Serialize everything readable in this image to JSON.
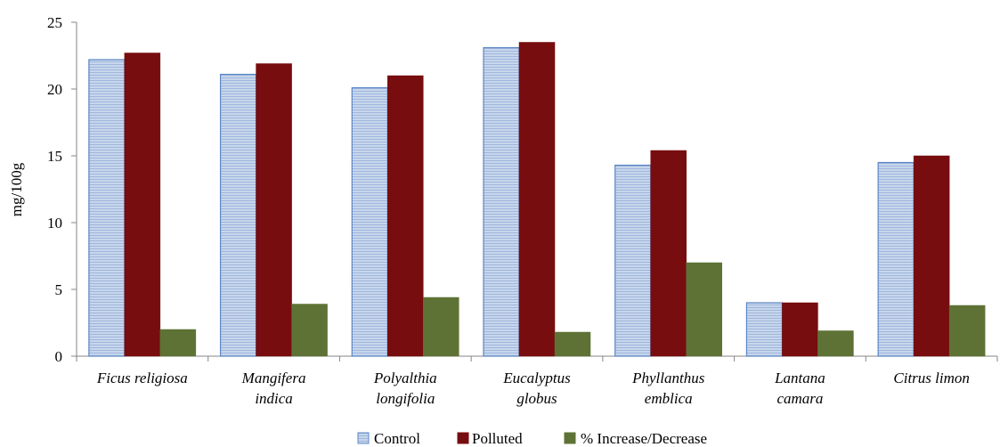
{
  "chart_data": {
    "type": "bar",
    "title": "",
    "xlabel": "",
    "ylabel": "mg/100g",
    "ylim": [
      0,
      25
    ],
    "yticks": [
      0,
      5,
      10,
      15,
      20,
      25
    ],
    "grid": false,
    "legend_position": "bottom",
    "categories": [
      [
        "Ficus religiosa"
      ],
      [
        "Mangifera",
        "indica"
      ],
      [
        "Polyalthia",
        "longifolia"
      ],
      [
        "Eucalyptus",
        "globus"
      ],
      [
        "Phyllanthus",
        "emblica"
      ],
      [
        "Lantana",
        "camara"
      ],
      [
        "Citrus limon"
      ]
    ],
    "series": [
      {
        "name": "Control",
        "color": "#b9cbe6",
        "stroke": "#5b87c5",
        "pattern": "horizontal-lines",
        "values": [
          22.2,
          21.1,
          20.1,
          23.1,
          14.3,
          4.0,
          14.5
        ]
      },
      {
        "name": "Polluted",
        "color": "#770d0f",
        "stroke": "#770d0f",
        "values": [
          22.7,
          21.9,
          21.0,
          23.5,
          15.4,
          4.0,
          15.0
        ]
      },
      {
        "name": "% Increase/Decrease",
        "color": "#5e7235",
        "stroke": "#5e7235",
        "values": [
          2.0,
          3.9,
          4.4,
          1.8,
          7.0,
          1.9,
          3.8
        ]
      }
    ]
  }
}
